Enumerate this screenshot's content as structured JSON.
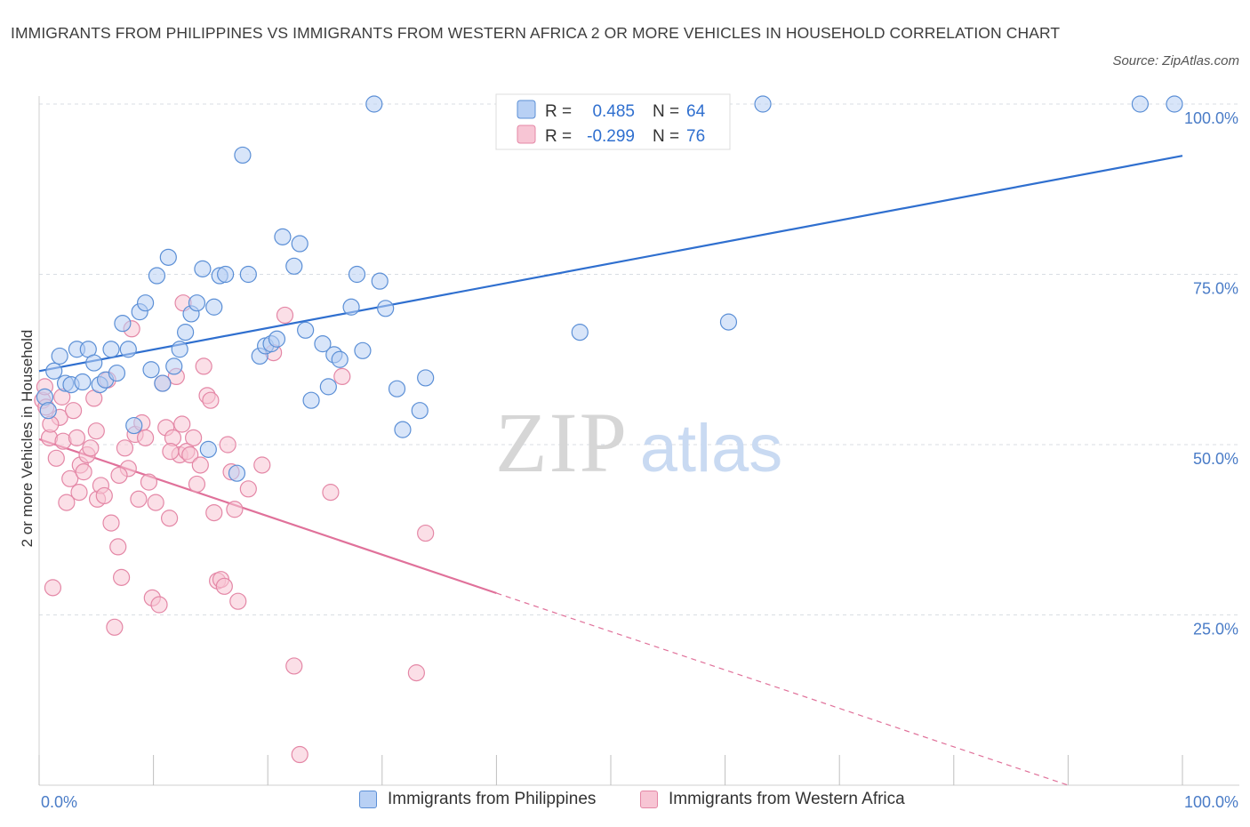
{
  "title": "IMMIGRANTS FROM PHILIPPINES VS IMMIGRANTS FROM WESTERN AFRICA 2 OR MORE VEHICLES IN HOUSEHOLD CORRELATION CHART",
  "source": "Source: ZipAtlas.com",
  "watermark": {
    "zip": "ZIP",
    "atlas": "atlas"
  },
  "colors": {
    "blue_fill": "#b8d0f4",
    "blue_stroke": "#5b8fd6",
    "blue_line": "#2f6fcf",
    "pink_fill": "#f7c5d4",
    "pink_stroke": "#e487a6",
    "pink_line": "#e0719a",
    "axis_text": "#4a7cc7",
    "grid": "#d9dde3"
  },
  "legend": {
    "rows": [
      {
        "r_label": "R =",
        "r_value": "0.485",
        "n_label": "N =",
        "n_value": "64"
      },
      {
        "r_label": "R =",
        "r_value": "-0.299",
        "n_label": "N =",
        "n_value": "76"
      }
    ]
  },
  "bottom_legend": [
    "Immigrants from Philippines",
    "Immigrants from Western Africa"
  ],
  "chart_data": {
    "type": "scatter",
    "title": "IMMIGRANTS FROM PHILIPPINES VS IMMIGRANTS FROM WESTERN AFRICA 2 OR MORE VEHICLES IN HOUSEHOLD CORRELATION CHART",
    "xlabel": "",
    "ylabel": "2 or more Vehicles in Household",
    "xlim": [
      0,
      100
    ],
    "ylim": [
      0,
      100
    ],
    "x_tick_labels": [
      "0.0%",
      "100.0%"
    ],
    "y_tick_labels": [
      "25.0%",
      "50.0%",
      "75.0%",
      "100.0%"
    ],
    "y_ticks": [
      25,
      50,
      75,
      100
    ],
    "grid": true,
    "legend_position": "top-center",
    "series": [
      {
        "name": "Immigrants from Philippines",
        "r": 0.485,
        "n": 64,
        "trend": {
          "x": [
            0,
            100
          ],
          "y": [
            60.8,
            92.4
          ]
        },
        "points": [
          [
            0.5,
            57
          ],
          [
            0.8,
            55
          ],
          [
            1.3,
            60.8
          ],
          [
            1.8,
            63
          ],
          [
            2.3,
            59
          ],
          [
            2.8,
            58.8
          ],
          [
            3.3,
            64
          ],
          [
            3.8,
            59.2
          ],
          [
            4.3,
            64
          ],
          [
            4.8,
            62
          ],
          [
            5.3,
            58.8
          ],
          [
            5.8,
            59.5
          ],
          [
            6.3,
            64
          ],
          [
            6.8,
            60.5
          ],
          [
            7.3,
            67.8
          ],
          [
            7.8,
            64
          ],
          [
            8.3,
            52.8
          ],
          [
            8.8,
            69.5
          ],
          [
            9.3,
            70.8
          ],
          [
            9.8,
            61
          ],
          [
            10.3,
            74.8
          ],
          [
            10.8,
            59
          ],
          [
            11.3,
            77.5
          ],
          [
            11.8,
            61.5
          ],
          [
            12.3,
            64
          ],
          [
            12.8,
            66.5
          ],
          [
            13.3,
            69.2
          ],
          [
            13.8,
            70.8
          ],
          [
            14.3,
            75.8
          ],
          [
            14.8,
            49.3
          ],
          [
            15.3,
            70.2
          ],
          [
            15.8,
            74.8
          ],
          [
            16.3,
            75
          ],
          [
            17.3,
            45.8
          ],
          [
            17.8,
            92.5
          ],
          [
            18.3,
            75
          ],
          [
            19.3,
            63
          ],
          [
            19.8,
            64.5
          ],
          [
            20.3,
            64.8
          ],
          [
            20.8,
            65.5
          ],
          [
            21.3,
            80.5
          ],
          [
            22.3,
            76.2
          ],
          [
            22.8,
            79.5
          ],
          [
            23.3,
            66.8
          ],
          [
            23.8,
            56.5
          ],
          [
            24.8,
            64.8
          ],
          [
            25.3,
            58.5
          ],
          [
            25.8,
            63.2
          ],
          [
            26.3,
            62.5
          ],
          [
            27.3,
            70.2
          ],
          [
            27.8,
            75
          ],
          [
            28.3,
            63.8
          ],
          [
            29.3,
            100
          ],
          [
            29.8,
            74
          ],
          [
            30.3,
            70
          ],
          [
            31.3,
            58.2
          ],
          [
            31.8,
            52.2
          ],
          [
            33.3,
            55
          ],
          [
            33.8,
            59.8
          ],
          [
            47.3,
            66.5
          ],
          [
            60.3,
            68
          ],
          [
            63.3,
            100
          ],
          [
            96.3,
            100
          ],
          [
            99.3,
            100
          ]
        ]
      },
      {
        "name": "Immigrants from Western Africa",
        "r": -0.299,
        "n": 76,
        "trend": {
          "x": [
            0,
            40
          ],
          "y": [
            50.8,
            28.2
          ]
        },
        "trend_dashed": {
          "x": [
            40,
            90
          ],
          "y": [
            28.2,
            0
          ]
        },
        "points": [
          [
            0.3,
            56.5
          ],
          [
            0.6,
            55.5
          ],
          [
            0.9,
            51
          ],
          [
            1.2,
            29
          ],
          [
            1.5,
            48
          ],
          [
            1.8,
            54
          ],
          [
            2.1,
            50.5
          ],
          [
            2.4,
            41.5
          ],
          [
            2.7,
            45
          ],
          [
            3.0,
            55
          ],
          [
            3.3,
            51
          ],
          [
            3.6,
            47
          ],
          [
            3.9,
            46
          ],
          [
            4.2,
            48.5
          ],
          [
            4.5,
            49.5
          ],
          [
            4.8,
            56.8
          ],
          [
            5.1,
            42
          ],
          [
            5.4,
            44
          ],
          [
            5.7,
            42.5
          ],
          [
            6.0,
            59.5
          ],
          [
            6.3,
            38.5
          ],
          [
            6.6,
            23.2
          ],
          [
            6.9,
            35
          ],
          [
            7.2,
            30.5
          ],
          [
            7.5,
            49.5
          ],
          [
            7.8,
            46.5
          ],
          [
            8.1,
            67
          ],
          [
            8.4,
            51.5
          ],
          [
            8.7,
            42
          ],
          [
            9.0,
            53.2
          ],
          [
            9.3,
            51
          ],
          [
            9.6,
            44.5
          ],
          [
            9.9,
            27.5
          ],
          [
            10.2,
            41.5
          ],
          [
            10.5,
            26.5
          ],
          [
            10.8,
            59
          ],
          [
            11.1,
            52.5
          ],
          [
            11.4,
            39.2
          ],
          [
            11.7,
            51
          ],
          [
            12.0,
            60
          ],
          [
            12.3,
            48.5
          ],
          [
            12.6,
            70.8
          ],
          [
            12.9,
            49
          ],
          [
            13.2,
            48.5
          ],
          [
            13.5,
            51
          ],
          [
            13.8,
            44.2
          ],
          [
            14.1,
            47
          ],
          [
            14.4,
            61.5
          ],
          [
            14.7,
            57.2
          ],
          [
            15.0,
            56.5
          ],
          [
            15.3,
            40
          ],
          [
            15.6,
            30
          ],
          [
            15.9,
            30.2
          ],
          [
            16.2,
            29.2
          ],
          [
            16.5,
            50
          ],
          [
            16.8,
            46
          ],
          [
            17.1,
            40.5
          ],
          [
            17.4,
            27
          ],
          [
            18.3,
            43.5
          ],
          [
            19.5,
            47
          ],
          [
            20.5,
            63.5
          ],
          [
            21.5,
            69
          ],
          [
            22.3,
            17.5
          ],
          [
            22.8,
            4.5
          ],
          [
            25.5,
            43
          ],
          [
            26.5,
            60
          ],
          [
            33.0,
            16.5
          ],
          [
            33.8,
            37
          ],
          [
            0.5,
            58.5
          ],
          [
            1.0,
            53
          ],
          [
            2.0,
            57
          ],
          [
            3.5,
            43
          ],
          [
            5.0,
            52
          ],
          [
            7.0,
            45.5
          ],
          [
            11.5,
            49
          ],
          [
            12.5,
            53
          ]
        ]
      }
    ]
  }
}
